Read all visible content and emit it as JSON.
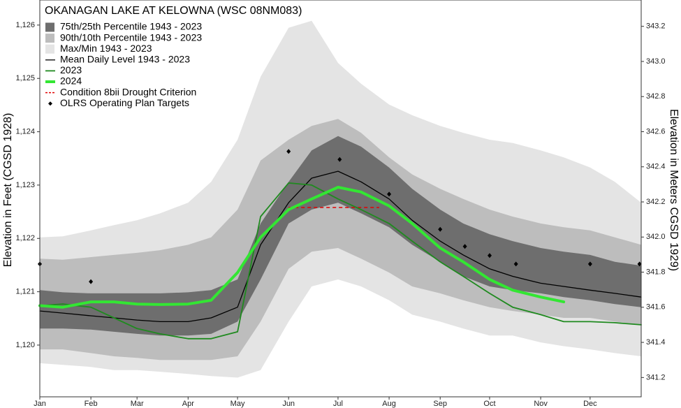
{
  "chart_data": {
    "type": "line",
    "title": "OKANAGAN LAKE AT KELOWNA (WSC 08NM083)",
    "y_label": "Elevation in Feet (CGSD 1928)",
    "y2_label": "Elevation in Meters CGSD 1929)",
    "legend": "top-left",
    "grid": false,
    "xlim": [
      1,
      366
    ],
    "xticks": [
      {
        "value": 1,
        "label": "Jan"
      },
      {
        "value": 32,
        "label": "Feb"
      },
      {
        "value": 60,
        "label": "Mar"
      },
      {
        "value": 91,
        "label": "Apr"
      },
      {
        "value": 121,
        "label": "May"
      },
      {
        "value": 152,
        "label": "Jun"
      },
      {
        "value": 182,
        "label": "Jul"
      },
      {
        "value": 213,
        "label": "Aug"
      },
      {
        "value": 244,
        "label": "Sep"
      },
      {
        "value": 274,
        "label": "Oct"
      },
      {
        "value": 305,
        "label": "Nov"
      },
      {
        "value": 335,
        "label": "Dec"
      }
    ],
    "ylim": [
      1119.03,
      1126.47
    ],
    "yticks": [
      {
        "value": 1120,
        "label": "1,120"
      },
      {
        "value": 1121,
        "label": "1,121"
      },
      {
        "value": 1122,
        "label": "1,122"
      },
      {
        "value": 1123,
        "label": "1,123"
      },
      {
        "value": 1124,
        "label": "1,124"
      },
      {
        "value": 1125,
        "label": "1,125"
      },
      {
        "value": 1126,
        "label": "1,126"
      }
    ],
    "y2lim": [
      341.09,
      343.35
    ],
    "y2ticks": [
      341.2,
      341.4,
      341.6,
      341.8,
      {
        "value": 342,
        "label": "342.0"
      },
      342.2,
      342.4,
      342.6,
      342.8,
      {
        "value": 343,
        "label": "343.0"
      },
      343.2
    ],
    "x": [
      1,
      15,
      32,
      46,
      60,
      74,
      91,
      105,
      121,
      135,
      152,
      166,
      182,
      196,
      213,
      227,
      244,
      258,
      274,
      288,
      305,
      319,
      335,
      350,
      366
    ],
    "bands": [
      {
        "name": "75th/25th Percentile 1943 - 2023",
        "color": "#6e6e6e",
        "upper": [
          1121.03,
          1120.99,
          1120.97,
          1120.97,
          1120.97,
          1120.97,
          1120.99,
          1121.03,
          1121.23,
          1122.28,
          1123.06,
          1123.65,
          1123.92,
          1123.72,
          1123.33,
          1122.93,
          1122.54,
          1122.28,
          1122.08,
          1121.95,
          1121.82,
          1121.75,
          1121.69,
          1121.56,
          1121.49
        ],
        "lower": [
          1120.31,
          1120.31,
          1120.29,
          1120.25,
          1120.21,
          1120.18,
          1120.18,
          1120.21,
          1120.44,
          1121.23,
          1122.28,
          1122.54,
          1122.67,
          1122.47,
          1122.21,
          1121.88,
          1121.56,
          1121.29,
          1121.1,
          1121.03,
          1120.97,
          1120.9,
          1120.84,
          1120.77,
          1120.71
        ]
      },
      {
        "name": "90th/10th Percentile 1943 - 2023",
        "color": "#bdbdbd",
        "upper": [
          1121.62,
          1121.6,
          1121.65,
          1121.69,
          1121.73,
          1121.78,
          1121.88,
          1122.02,
          1122.54,
          1123.46,
          1123.85,
          1124.11,
          1124.24,
          1123.98,
          1123.52,
          1123.2,
          1122.93,
          1122.74,
          1122.54,
          1122.41,
          1122.28,
          1122.21,
          1122.15,
          1122.02,
          1121.88
        ],
        "lower": [
          1119.92,
          1119.92,
          1119.85,
          1119.79,
          1119.76,
          1119.72,
          1119.72,
          1119.72,
          1119.79,
          1120.44,
          1121.43,
          1121.75,
          1121.82,
          1121.62,
          1121.36,
          1121.1,
          1120.97,
          1120.84,
          1120.71,
          1120.64,
          1120.57,
          1120.51,
          1120.51,
          1120.44,
          1120.38
        ]
      },
      {
        "name": "Max/Min 1943 - 2023",
        "color": "#e4e4e4",
        "upper": [
          1122.02,
          1122.04,
          1122.15,
          1122.25,
          1122.34,
          1122.47,
          1122.67,
          1123.06,
          1123.85,
          1125.03,
          1125.95,
          1126.08,
          1125.29,
          1124.9,
          1124.51,
          1124.31,
          1124.11,
          1123.98,
          1123.85,
          1123.79,
          1123.65,
          1123.52,
          1123.33,
          1123.06,
          1122.67
        ],
        "lower": [
          1119.66,
          1119.63,
          1119.59,
          1119.53,
          1119.53,
          1119.5,
          1119.46,
          1119.42,
          1119.39,
          1119.53,
          1120.44,
          1121.1,
          1121.23,
          1121.1,
          1120.84,
          1120.57,
          1120.44,
          1120.31,
          1120.18,
          1120.18,
          1120.05,
          1119.98,
          1119.92,
          1119.85,
          1119.79
        ]
      }
    ],
    "series": [
      {
        "name": "Mean Daily Level 1943 - 2023",
        "color": "#000000",
        "width": 1.3,
        "values": [
          1120.64,
          1120.6,
          1120.55,
          1120.51,
          1120.47,
          1120.44,
          1120.44,
          1120.51,
          1120.71,
          1121.88,
          1122.67,
          1123.13,
          1123.26,
          1123.06,
          1122.74,
          1122.34,
          1121.95,
          1121.69,
          1121.43,
          1121.29,
          1121.16,
          1121.1,
          1121.03,
          1120.97,
          1120.9
        ]
      },
      {
        "name": "2023",
        "color": "#1f8a1f",
        "width": 1.8,
        "values": [
          1120.74,
          1120.77,
          1120.71,
          1120.51,
          1120.31,
          1120.21,
          1120.12,
          1120.12,
          1120.25,
          1122.41,
          1123.04,
          1123.0,
          1122.74,
          1122.54,
          1122.28,
          1121.95,
          1121.56,
          1121.29,
          1120.97,
          1120.71,
          1120.57,
          1120.44,
          1120.44,
          1120.42,
          1120.38
        ]
      },
      {
        "name": "2024",
        "color": "#33e633",
        "width": 4,
        "values": [
          1120.74,
          1120.71,
          1120.81,
          1120.81,
          1120.77,
          1120.76,
          1120.77,
          1120.84,
          1121.36,
          1122.02,
          1122.54,
          1122.74,
          1122.96,
          1122.87,
          1122.61,
          1122.28,
          1121.82,
          1121.56,
          1121.23,
          1121.03,
          1120.9,
          1120.81,
          null,
          null,
          null
        ]
      }
    ],
    "drought": {
      "name": "Condition 8bii Drought Criterion",
      "color": "#e00000",
      "x": [
        152,
        207
      ],
      "values": [
        1122.58,
        1122.58
      ]
    },
    "targets": {
      "name": "OLRS Operating Plan Targets",
      "color": "#000000",
      "x": [
        1,
        32,
        152,
        183,
        213,
        244,
        259,
        274,
        290,
        335,
        365
      ],
      "values": [
        1121.52,
        1121.19,
        1123.63,
        1123.48,
        1122.83,
        1122.17,
        1121.85,
        1121.68,
        1121.52,
        1121.52,
        1121.52
      ]
    }
  }
}
